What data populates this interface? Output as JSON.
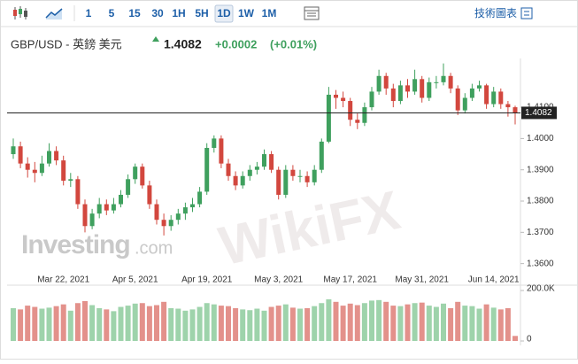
{
  "toolbar": {
    "intervals": [
      "1",
      "5",
      "15",
      "30",
      "1H",
      "5H",
      "1D",
      "1W",
      "1M"
    ],
    "right_label": "技術圖表"
  },
  "header": {
    "symbol": "GBP/USD - 英鎊 美元",
    "change": "+0.0002",
    "change_pct": "(+0.01%)"
  },
  "watermarks": {
    "logo": "Investing",
    "logo_suffix": ".com",
    "brand": "WikiFX"
  },
  "chart_data": {
    "type": "candlestick",
    "categories": [
      null,
      null,
      null,
      null,
      null,
      null,
      null,
      "Mar 22, 2021",
      null,
      null,
      null,
      null,
      null,
      null,
      null,
      null,
      null,
      "Apr 5, 2021",
      null,
      null,
      null,
      null,
      null,
      null,
      null,
      null,
      null,
      "Apr 19, 2021",
      null,
      null,
      null,
      null,
      null,
      null,
      null,
      null,
      null,
      "May 3, 2021",
      null,
      null,
      null,
      null,
      null,
      null,
      null,
      null,
      null,
      "May 17, 2021",
      null,
      null,
      null,
      null,
      null,
      null,
      null,
      null,
      null,
      "May 31, 2021",
      null,
      null,
      null,
      null,
      null,
      null,
      null,
      null,
      null,
      "Jun 14, 2021",
      null,
      null,
      null
    ],
    "open": [
      1.395,
      1.3975,
      1.392,
      1.39,
      1.389,
      1.392,
      1.396,
      1.393,
      1.3865,
      1.387,
      1.379,
      1.372,
      1.376,
      1.379,
      1.377,
      1.379,
      1.382,
      1.387,
      1.391,
      1.385,
      1.379,
      1.374,
      1.372,
      1.374,
      1.376,
      1.378,
      1.379,
      1.383,
      1.397,
      1.4,
      1.392,
      1.388,
      1.385,
      1.388,
      1.39,
      1.391,
      1.395,
      1.39,
      1.382,
      1.39,
      1.388,
      1.388,
      1.386,
      1.39,
      1.399,
      1.414,
      1.413,
      1.412,
      1.406,
      1.405,
      1.41,
      1.415,
      1.42,
      1.416,
      1.412,
      1.417,
      1.415,
      1.419,
      1.413,
      1.418,
      1.418,
      1.42,
      1.416,
      1.409,
      1.413,
      1.416,
      1.417,
      1.411,
      1.415,
      1.411,
      1.41
    ],
    "high": [
      1.4,
      1.399,
      1.394,
      1.3925,
      1.3945,
      1.3985,
      1.3975,
      1.3945,
      1.389,
      1.388,
      1.3805,
      1.3775,
      1.381,
      1.3805,
      1.381,
      1.3835,
      1.3885,
      1.392,
      1.392,
      1.3865,
      1.3805,
      1.376,
      1.3755,
      1.3775,
      1.3795,
      1.381,
      1.3845,
      1.3985,
      1.401,
      1.401,
      1.3935,
      1.3895,
      1.3895,
      1.3915,
      1.3925,
      1.3965,
      1.396,
      1.391,
      1.3915,
      1.3915,
      1.39,
      1.3895,
      1.3915,
      1.4,
      1.4165,
      1.4155,
      1.415,
      1.413,
      1.408,
      1.4115,
      1.4165,
      1.422,
      1.421,
      1.4175,
      1.4185,
      1.419,
      1.422,
      1.42,
      1.4195,
      1.42,
      1.424,
      1.421,
      1.417,
      1.4145,
      1.4175,
      1.4185,
      1.4175,
      1.4165,
      1.416,
      1.412,
      1.4105
    ],
    "low": [
      1.3935,
      1.3905,
      1.3875,
      1.386,
      1.388,
      1.391,
      1.3915,
      1.385,
      1.3845,
      1.3775,
      1.37,
      1.371,
      1.3745,
      1.3755,
      1.376,
      1.378,
      1.381,
      1.3855,
      1.384,
      1.3775,
      1.3725,
      1.369,
      1.3705,
      1.3725,
      1.374,
      1.3765,
      1.378,
      1.382,
      1.3955,
      1.3905,
      1.3865,
      1.3835,
      1.384,
      1.3865,
      1.3885,
      1.39,
      1.389,
      1.3805,
      1.381,
      1.3865,
      1.386,
      1.3845,
      1.385,
      1.389,
      1.3985,
      1.4095,
      1.41,
      1.404,
      1.403,
      1.404,
      1.409,
      1.414,
      1.414,
      1.41,
      1.411,
      1.413,
      1.414,
      1.4115,
      1.412,
      1.416,
      1.417,
      1.4145,
      1.4075,
      1.408,
      1.412,
      1.415,
      1.4095,
      1.41,
      1.4095,
      1.407,
      1.4045
    ],
    "close": [
      1.3975,
      1.392,
      1.39,
      1.389,
      1.392,
      1.396,
      1.393,
      1.3865,
      1.387,
      1.379,
      1.372,
      1.376,
      1.379,
      1.377,
      1.379,
      1.382,
      1.387,
      1.391,
      1.385,
      1.379,
      1.374,
      1.372,
      1.374,
      1.376,
      1.378,
      1.379,
      1.383,
      1.397,
      1.4,
      1.392,
      1.388,
      1.385,
      1.388,
      1.39,
      1.391,
      1.395,
      1.39,
      1.382,
      1.39,
      1.388,
      1.388,
      1.386,
      1.39,
      1.399,
      1.414,
      1.413,
      1.412,
      1.406,
      1.405,
      1.41,
      1.415,
      1.42,
      1.416,
      1.412,
      1.417,
      1.415,
      1.419,
      1.413,
      1.418,
      1.418,
      1.42,
      1.416,
      1.409,
      1.413,
      1.416,
      1.417,
      1.411,
      1.415,
      1.411,
      1.41,
      1.4082
    ],
    "last_price": 1.4082,
    "up_color": "#3fa05e",
    "down_color": "#d2473e",
    "ylim": [
      1.3565,
      1.4256
    ],
    "yticks": [
      {
        "value": 1.36,
        "label": "1.3600"
      },
      {
        "value": 1.37,
        "label": "1.3700"
      },
      {
        "value": 1.38,
        "label": "1.3800"
      },
      {
        "value": 1.39,
        "label": "1.3900"
      },
      {
        "value": 1.4,
        "label": "1.4000"
      },
      {
        "value": 1.41,
        "label": "1.4100"
      }
    ],
    "volume": {
      "values": [
        130000,
        125000,
        140000,
        135000,
        128000,
        132000,
        138000,
        145000,
        120000,
        150000,
        158000,
        142000,
        130000,
        125000,
        118000,
        135000,
        140000,
        148000,
        150000,
        138000,
        142000,
        155000,
        130000,
        128000,
        120000,
        125000,
        135000,
        150000,
        145000,
        140000,
        138000,
        130000,
        125000,
        122000,
        128000,
        120000,
        135000,
        140000,
        145000,
        132000,
        128000,
        130000,
        138000,
        150000,
        165000,
        155000,
        140000,
        148000,
        142000,
        150000,
        160000,
        162000,
        155000,
        140000,
        138000,
        145000,
        150000,
        152000,
        140000,
        135000,
        148000,
        130000,
        155000,
        140000,
        138000,
        128000,
        145000,
        132000,
        125000,
        130000,
        20000
      ],
      "up_color": "#9ed3ab",
      "down_color": "#e3918b",
      "ylim": [
        0,
        221000
      ],
      "yticks": [
        0,
        {
          "value": 200000,
          "label": "200.0K"
        }
      ]
    }
  }
}
